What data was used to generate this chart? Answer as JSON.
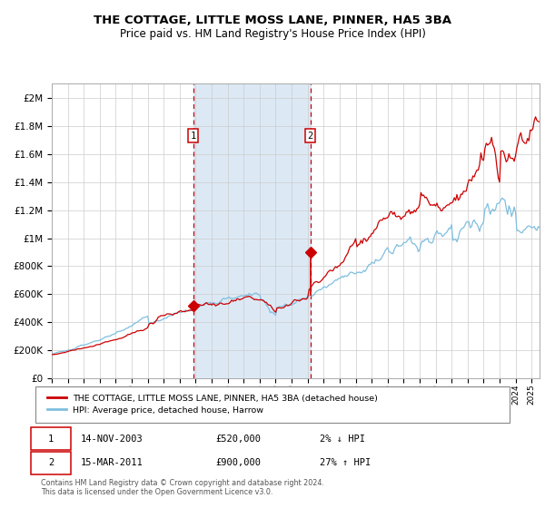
{
  "title": "THE COTTAGE, LITTLE MOSS LANE, PINNER, HA5 3BA",
  "subtitle": "Price paid vs. HM Land Registry's House Price Index (HPI)",
  "title_fontsize": 9.5,
  "subtitle_fontsize": 8.5,
  "hpi_color": "#7fbfdf",
  "property_color": "#cc0000",
  "purchase1_time": 2003.833,
  "purchase1_price": 520000,
  "purchase2_time": 2011.167,
  "purchase2_price": 900000,
  "legend_entry1": "THE COTTAGE, LITTLE MOSS LANE, PINNER, HA5 3BA (detached house)",
  "legend_entry2": "HPI: Average price, detached house, Harrow",
  "table_row1": [
    "1",
    "14-NOV-2003",
    "£520,000",
    "2% ↓ HPI"
  ],
  "table_row2": [
    "2",
    "15-MAR-2011",
    "£900,000",
    "27% ↑ HPI"
  ],
  "footnote1": "Contains HM Land Registry data © Crown copyright and database right 2024.",
  "footnote2": "This data is licensed under the Open Government Licence v3.0.",
  "ylim_max": 2000000,
  "yticks": [
    0,
    200000,
    400000,
    600000,
    800000,
    1000000,
    1200000,
    1400000,
    1600000,
    1800000,
    2000000
  ],
  "xlim_start": 1995,
  "xlim_end": 2025.5,
  "background_color": "#ffffff",
  "shade_color": "#dce9f5",
  "grid_color": "#cccccc"
}
